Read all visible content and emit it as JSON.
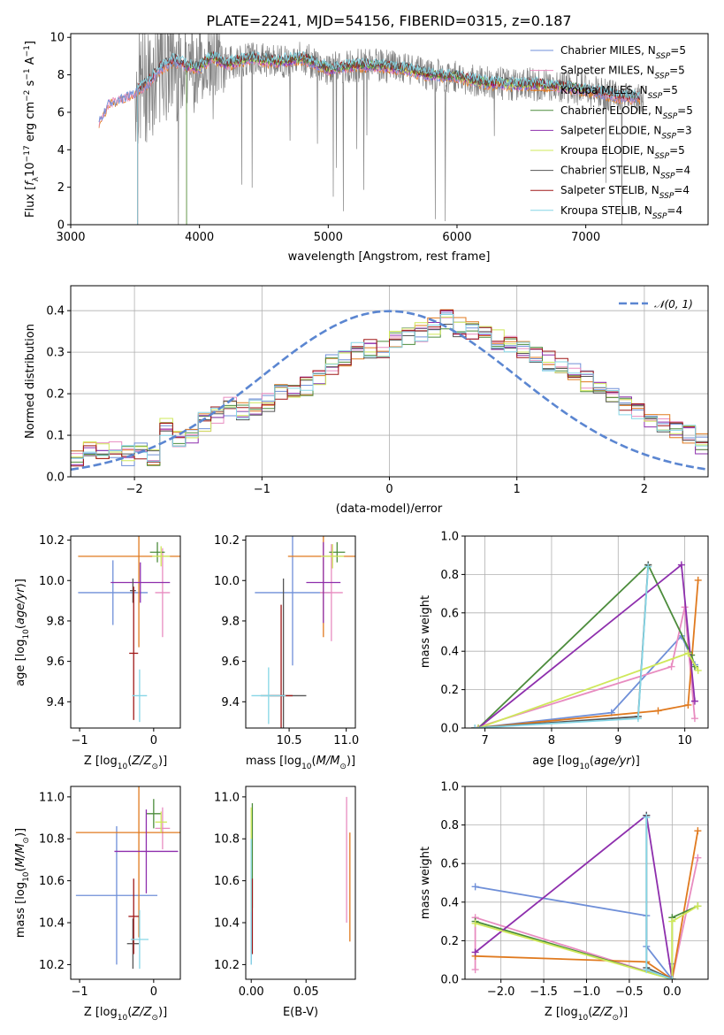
{
  "title": "PLATE=2241, MJD=54156, FIBERID=0315, z=0.187",
  "colors": {
    "Chabrier MILES": "#6f8fd8",
    "Salpeter MILES": "#e88cc0",
    "Kroupa MILES": "#e07a1f",
    "Chabrier ELODIE": "#4c8c3c",
    "Salpeter ELODIE": "#8e2fad",
    "Kroupa ELODIE": "#cfe85a",
    "Chabrier STELIB": "#555555",
    "Salpeter STELIB": "#a01818",
    "Kroupa STELIB": "#86d6e6",
    "data": "#808080",
    "gauss": "#5b86d1"
  },
  "chart_data": [
    {
      "type": "line",
      "xlabel": "wavelength [Angstrom, rest frame]",
      "ylabel": "Flux [fλ10^-17 erg cm^-2 s^-1 A^-1]",
      "xlim": [
        3000,
        7950
      ],
      "ylim": [
        0,
        10.2
      ],
      "xticks": [
        "3000",
        "4000",
        "5000",
        "6000",
        "7000"
      ],
      "yticks": [
        "0",
        "2",
        "4",
        "6",
        "8",
        "10"
      ],
      "legend": "top-right",
      "legend_entries": [
        "Chabrier MILES, N_SSP=5",
        "Salpeter MILES, N_SSP=5",
        "Kroupa MILES, N_SSP=5",
        "Chabrier ELODIE, N_SSP=5",
        "Salpeter ELODIE, N_SSP=3",
        "Kroupa ELODIE, N_SSP=5",
        "Chabrier STELIB, N_SSP=4",
        "Salpeter STELIB, N_SSP=4",
        "Kroupa STELIB, N_SSP=4"
      ],
      "data_range": [
        3500,
        7450
      ],
      "model_curve": {
        "x": [
          3220,
          3300,
          3400,
          3500,
          3600,
          3700,
          3800,
          3900,
          4000,
          4100,
          4200,
          4400,
          4600,
          4800,
          5000,
          5200,
          5400,
          5600,
          5800,
          6000,
          6200,
          6400,
          6600,
          6800,
          7000,
          7200,
          7400
        ],
        "y": [
          5.5,
          6.6,
          6.8,
          7.1,
          7.6,
          8.4,
          8.8,
          8.5,
          8.4,
          9.0,
          8.6,
          8.9,
          8.7,
          8.9,
          8.3,
          8.5,
          8.5,
          8.3,
          8.0,
          7.9,
          7.6,
          7.5,
          7.5,
          7.4,
          7.2,
          6.9,
          6.8
        ]
      }
    },
    {
      "type": "bar",
      "xlabel": "(data-model)/error",
      "ylabel": "Normed distribution",
      "xlim": [
        -2.5,
        2.5
      ],
      "ylim": [
        0,
        0.46
      ],
      "xticks": [
        "−2",
        "−1",
        "0",
        "1",
        "2"
      ],
      "yticks": [
        "0.0",
        "0.1",
        "0.2",
        "0.3",
        "0.4"
      ],
      "grid": true,
      "legend": "top-right",
      "legend_entries": [
        "𝒩(0, 1)"
      ],
      "bin_width": 0.1,
      "bin_start": -2.5,
      "base_hist": [
        0.05,
        0.07,
        0.06,
        0.07,
        0.05,
        0.06,
        0.05,
        0.12,
        0.09,
        0.1,
        0.13,
        0.15,
        0.17,
        0.16,
        0.17,
        0.18,
        0.2,
        0.21,
        0.22,
        0.24,
        0.27,
        0.28,
        0.3,
        0.31,
        0.31,
        0.33,
        0.34,
        0.35,
        0.36,
        0.38,
        0.36,
        0.35,
        0.34,
        0.33,
        0.32,
        0.31,
        0.3,
        0.28,
        0.27,
        0.25,
        0.23,
        0.21,
        0.19,
        0.17,
        0.16,
        0.14,
        0.13,
        0.11,
        0.1,
        0.08,
        0.06
      ]
    },
    {
      "type": "scatter",
      "xlabel": "Z [log10(Z/Z⊙)]",
      "ylabel": "age  [log10(age/yr)]",
      "xlim": [
        -1.12,
        0.36
      ],
      "ylim": [
        9.27,
        10.22
      ],
      "xticks": [
        "−1",
        "0"
      ],
      "yticks": [
        "9.4",
        "9.6",
        "9.8",
        "10.0",
        "10.2"
      ],
      "errorbars": [
        {
          "model": "Chabrier MILES",
          "x": -0.55,
          "xerr": 0.47,
          "y": 9.94,
          "yerr": 0.16
        },
        {
          "model": "Salpeter MILES",
          "x": 0.12,
          "xerr": 0.1,
          "y": 9.94,
          "yerr": 0.22
        },
        {
          "model": "Kroupa MILES",
          "x": -0.2,
          "xerr": 0.82,
          "y": 10.12,
          "yerr": 0.45
        },
        {
          "model": "Chabrier ELODIE",
          "x": 0.05,
          "xerr": 0.1,
          "y": 10.14,
          "yerr": 0.05
        },
        {
          "model": "Salpeter ELODIE",
          "x": -0.18,
          "xerr": 0.4,
          "y": 9.99,
          "yerr": 0.1
        },
        {
          "model": "Kroupa ELODIE",
          "x": 0.1,
          "xerr": 0.12,
          "y": 10.12,
          "yerr": 0.05
        },
        {
          "model": "Chabrier STELIB",
          "x": -0.28,
          "xerr": 0.04,
          "y": 9.95,
          "yerr": 0.06
        },
        {
          "model": "Salpeter STELIB",
          "x": -0.27,
          "xerr": 0.06,
          "y": 9.64,
          "yerr": 0.33
        },
        {
          "model": "Kroupa STELIB",
          "x": -0.19,
          "xerr": 0.1,
          "y": 9.43,
          "yerr": 0.13
        }
      ]
    },
    {
      "type": "scatter",
      "xlabel": "mass [log10(M/M⊙)]",
      "ylabel": "",
      "xlim": [
        10.12,
        11.08
      ],
      "ylim": [
        9.27,
        10.22
      ],
      "xticks": [
        "10.5",
        "11.0"
      ],
      "yticks": [
        "9.4",
        "9.6",
        "9.8",
        "10.0",
        "10.2"
      ],
      "errorbars": [
        {
          "model": "Chabrier MILES",
          "x": 10.53,
          "xerr": 0.33,
          "y": 9.94,
          "yerr": 0.36
        },
        {
          "model": "Salpeter MILES",
          "x": 10.87,
          "xerr": 0.1,
          "y": 9.94,
          "yerr": 0.24
        },
        {
          "model": "Kroupa MILES",
          "x": 10.8,
          "xerr": 0.31,
          "y": 10.12,
          "yerr": 0.4
        },
        {
          "model": "Chabrier ELODIE",
          "x": 10.92,
          "xerr": 0.07,
          "y": 10.14,
          "yerr": 0.05
        },
        {
          "model": "Salpeter ELODIE",
          "x": 10.8,
          "xerr": 0.15,
          "y": 9.99,
          "yerr": 0.2
        },
        {
          "model": "Kroupa ELODIE",
          "x": 10.88,
          "xerr": 0.1,
          "y": 10.12,
          "yerr": 0.06
        },
        {
          "model": "Chabrier STELIB",
          "x": 10.45,
          "xerr": 0.2,
          "y": 9.43,
          "yerr": 0.58
        },
        {
          "model": "Salpeter STELIB",
          "x": 10.43,
          "xerr": 0.1,
          "y": 9.43,
          "yerr": 0.45
        },
        {
          "model": "Kroupa STELIB",
          "x": 10.32,
          "xerr": 0.15,
          "y": 9.43,
          "yerr": 0.14
        }
      ]
    },
    {
      "type": "line",
      "xlabel": "age  [log10(age/yr)]",
      "ylabel": "mass weight",
      "xlim": [
        6.7,
        10.35
      ],
      "ylim": [
        0,
        1.0
      ],
      "xticks": [
        "7",
        "8",
        "9",
        "10"
      ],
      "yticks": [
        "0.0",
        "0.2",
        "0.4",
        "0.6",
        "0.8",
        "1.0"
      ],
      "grid": true,
      "series": [
        {
          "model": "Chabrier MILES",
          "x": [
            6.85,
            8.9,
            9.95,
            10.15
          ],
          "y": [
            0.0,
            0.08,
            0.48,
            0.33
          ]
        },
        {
          "model": "Salpeter MILES",
          "x": [
            6.85,
            9.8,
            10.0,
            10.15
          ],
          "y": [
            0.0,
            0.32,
            0.63,
            0.05
          ]
        },
        {
          "model": "Kroupa MILES",
          "x": [
            6.85,
            9.6,
            10.05,
            10.2
          ],
          "y": [
            0.0,
            0.09,
            0.12,
            0.77
          ]
        },
        {
          "model": "Chabrier ELODIE",
          "x": [
            6.9,
            9.45,
            10.1,
            10.15
          ],
          "y": [
            0.0,
            0.85,
            0.38,
            0.32
          ]
        },
        {
          "model": "Salpeter ELODIE",
          "x": [
            6.9,
            9.95,
            10.15
          ],
          "y": [
            0.0,
            0.85,
            0.14
          ]
        },
        {
          "model": "Kroupa ELODIE",
          "x": [
            6.9,
            10.05,
            10.2
          ],
          "y": [
            0.0,
            0.39,
            0.3
          ]
        },
        {
          "model": "Chabrier STELIB",
          "x": [
            6.85,
            9.3,
            9.45
          ],
          "y": [
            0.0,
            0.06,
            0.85
          ]
        },
        {
          "model": "Kroupa STELIB",
          "x": [
            6.85,
            9.3,
            9.45
          ],
          "y": [
            0.0,
            0.05,
            0.84
          ]
        }
      ]
    },
    {
      "type": "scatter",
      "xlabel": "Z [log10(Z/Z⊙)]",
      "ylabel": "mass [log10(M/M⊙)]",
      "xlim": [
        -1.12,
        0.36
      ],
      "ylim": [
        10.13,
        11.05
      ],
      "xticks": [
        "−1",
        "0"
      ],
      "yticks": [
        "10.2",
        "10.4",
        "10.6",
        "10.8",
        "11.0"
      ],
      "errorbars": [
        {
          "model": "Chabrier MILES",
          "x": -0.5,
          "xerr": 0.55,
          "y": 10.53,
          "yerr": 0.33
        },
        {
          "model": "Salpeter MILES",
          "x": 0.12,
          "xerr": 0.1,
          "y": 10.85,
          "yerr": 0.1
        },
        {
          "model": "Kroupa MILES",
          "x": -0.2,
          "xerr": 0.85,
          "y": 10.83,
          "yerr": 0.5
        },
        {
          "model": "Chabrier ELODIE",
          "x": 0.0,
          "xerr": 0.1,
          "y": 10.92,
          "yerr": 0.07
        },
        {
          "model": "Salpeter ELODIE",
          "x": -0.1,
          "xerr": 0.43,
          "y": 10.74,
          "yerr": 0.2
        },
        {
          "model": "Kroupa ELODIE",
          "x": 0.1,
          "xerr": 0.08,
          "y": 10.88,
          "yerr": 0.05
        },
        {
          "model": "Chabrier STELIB",
          "x": -0.28,
          "xerr": 0.08,
          "y": 10.3,
          "yerr": 0.12
        },
        {
          "model": "Salpeter STELIB",
          "x": -0.27,
          "xerr": 0.07,
          "y": 10.43,
          "yerr": 0.18
        },
        {
          "model": "Kroupa STELIB",
          "x": -0.19,
          "xerr": 0.12,
          "y": 10.32,
          "yerr": 0.14
        }
      ]
    },
    {
      "type": "scatter",
      "xlabel": "E(B-V)",
      "ylabel": "",
      "xlim": [
        -0.005,
        0.095
      ],
      "ylim": [
        10.13,
        11.05
      ],
      "xticks": [
        "0.00",
        "0.05"
      ],
      "yticks": [
        "10.2",
        "10.4",
        "10.6",
        "10.8",
        "11.0"
      ],
      "errorbars": [
        {
          "model": "Chabrier MILES",
          "x": 0.0,
          "xerr": 0,
          "y": 10.5,
          "yerr": 0.3
        },
        {
          "model": "Salpeter MILES",
          "x": 0.087,
          "xerr": 0,
          "y": 10.7,
          "yerr": 0.3
        },
        {
          "model": "Kroupa MILES",
          "x": 0.09,
          "xerr": 0,
          "y": 10.57,
          "yerr": 0.26
        },
        {
          "model": "Chabrier ELODIE",
          "x": 0.001,
          "xerr": 0,
          "y": 10.72,
          "yerr": 0.25
        },
        {
          "model": "Kroupa ELODIE",
          "x": 0.0,
          "xerr": 0,
          "y": 10.7,
          "yerr": 0.25
        },
        {
          "model": "Salpeter STELIB",
          "x": 0.001,
          "xerr": 0,
          "y": 10.43,
          "yerr": 0.18
        },
        {
          "model": "Kroupa STELIB",
          "x": 0.0,
          "xerr": 0,
          "y": 10.5,
          "yerr": 0.3
        }
      ]
    },
    {
      "type": "line",
      "xlabel": "Z [log10(Z/Z⊙)]",
      "ylabel": "mass weight",
      "xlim": [
        -2.42,
        0.42
      ],
      "ylim": [
        0,
        1.0
      ],
      "xticks": [
        "−2.0",
        "−1.5",
        "−1.0",
        "−0.5",
        "0.0"
      ],
      "yticks": [
        "0.0",
        "0.2",
        "0.4",
        "0.6",
        "0.8",
        "1.0"
      ],
      "grid": true,
      "series": [
        {
          "model": "Chabrier MILES",
          "x": [
            -2.3,
            -0.3,
            -0.3,
            0.0,
            0.0
          ],
          "y": [
            0.48,
            0.33,
            0.17,
            0.0,
            0.08
          ]
        },
        {
          "model": "Salpeter MILES",
          "x": [
            -2.3,
            -2.3,
            0.0,
            0.3
          ],
          "y": [
            0.05,
            0.32,
            0.0,
            0.63
          ]
        },
        {
          "model": "Kroupa MILES",
          "x": [
            -2.3,
            -0.3,
            0.0,
            0.3
          ],
          "y": [
            0.12,
            0.09,
            0.0,
            0.77
          ]
        },
        {
          "model": "Chabrier ELODIE",
          "x": [
            -2.3,
            0.0,
            0.0,
            0.3
          ],
          "y": [
            0.3,
            0.0,
            0.32,
            0.38
          ]
        },
        {
          "model": "Salpeter ELODIE",
          "x": [
            -2.3,
            -0.3,
            0.0
          ],
          "y": [
            0.14,
            0.85,
            0.0
          ]
        },
        {
          "model": "Kroupa ELODIE",
          "x": [
            -2.3,
            0.0,
            0.0,
            0.3
          ],
          "y": [
            0.29,
            0.0,
            0.3,
            0.38
          ]
        },
        {
          "model": "Chabrier STELIB",
          "x": [
            -0.3,
            -0.3,
            0.0
          ],
          "y": [
            0.85,
            0.06,
            0.0
          ]
        },
        {
          "model": "Kroupa STELIB",
          "x": [
            -0.3,
            -0.3,
            0.0
          ],
          "y": [
            0.84,
            0.05,
            0.0
          ]
        }
      ]
    }
  ]
}
